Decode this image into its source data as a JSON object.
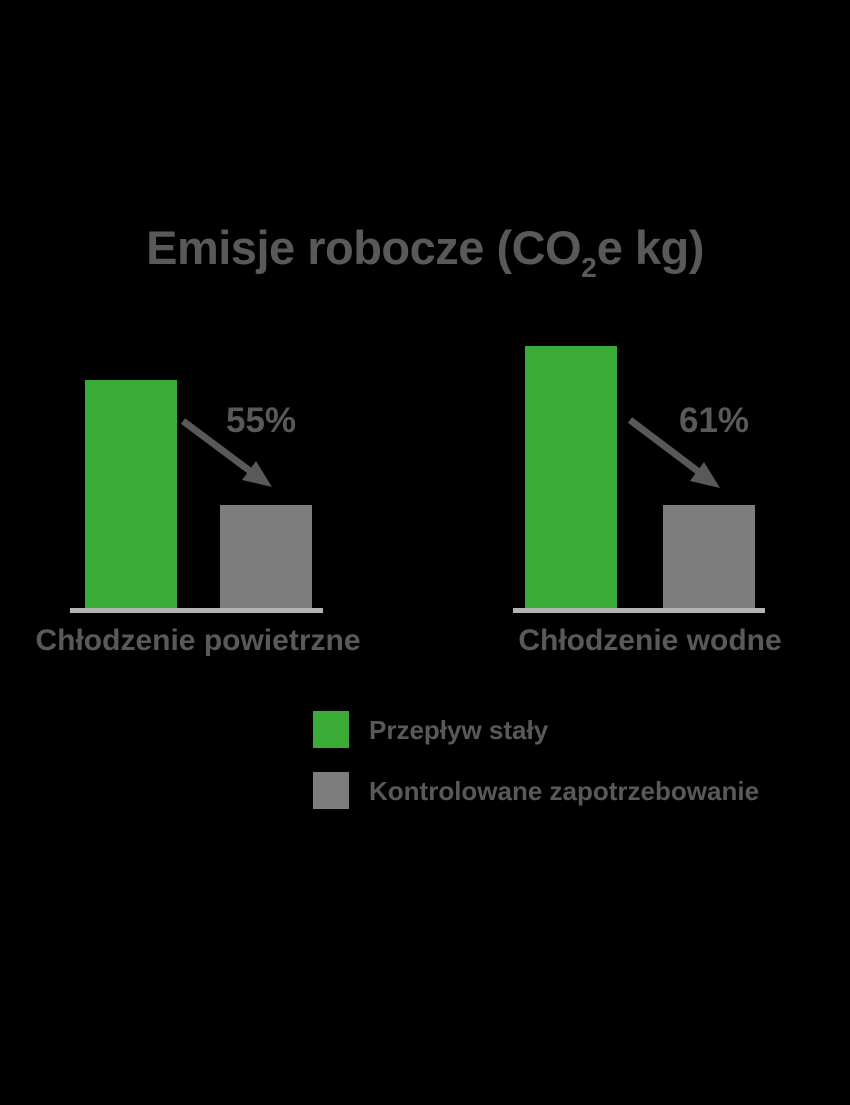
{
  "title": {
    "part1": "Emisje robocze (CO",
    "subscript": "2",
    "part2": "e kg)"
  },
  "colors": {
    "green": "#3aab34",
    "gray": "#7d7d7d",
    "text_dark_gray": "#58595b",
    "baseline_gray": "#b3b3b3",
    "background": "#000000"
  },
  "groups": [
    {
      "label": "Chłodzenie powietrzne",
      "reduction_label": "55%"
    },
    {
      "label": "Chłodzenie wodne",
      "reduction_label": "61%"
    }
  ],
  "legend": {
    "items": [
      {
        "label": "Przepływ stały",
        "color": "#3aab34",
        "swatch": "green-square"
      },
      {
        "label": "Kontrolowane zapotrzebowanie",
        "color": "#7d7d7d",
        "swatch": "gray-square"
      }
    ]
  },
  "chart_data": {
    "type": "bar",
    "title": "Emisje robocze (CO₂e kg)",
    "categories": [
      "Chłodzenie powietrzne",
      "Chłodzenie wodne"
    ],
    "series": [
      {
        "name": "Przepływ stały",
        "color": "#3aab34",
        "values_relative": [
          100,
          115
        ]
      },
      {
        "name": "Kontrolowane zapotrzebowanie",
        "color": "#7d7d7d",
        "values_relative": [
          45,
          45
        ]
      }
    ],
    "annotations": [
      {
        "category": "Chłodzenie powietrzne",
        "text": "55%",
        "type": "decrease-arrow"
      },
      {
        "category": "Chłodzenie wodne",
        "text": "61%",
        "type": "decrease-arrow"
      }
    ],
    "axes": "none",
    "grid": false,
    "value_units": "relative (no axis values shown)",
    "legend_position": "bottom"
  }
}
